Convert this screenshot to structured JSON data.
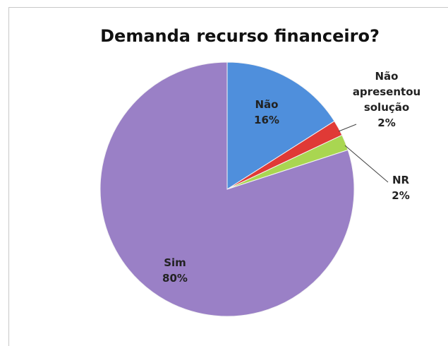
{
  "chart_data": {
    "type": "pie",
    "title": "Demanda recurso financeiro?",
    "categories": [
      "Não",
      "Não apresentou solução",
      "NR",
      "Sim"
    ],
    "values": [
      16,
      2,
      2,
      80
    ],
    "value_labels": [
      "16%",
      "2%",
      "2%",
      "80%"
    ],
    "colors": [
      "#4f8fdc",
      "#e03a36",
      "#a9d651",
      "#9a80c6"
    ]
  }
}
